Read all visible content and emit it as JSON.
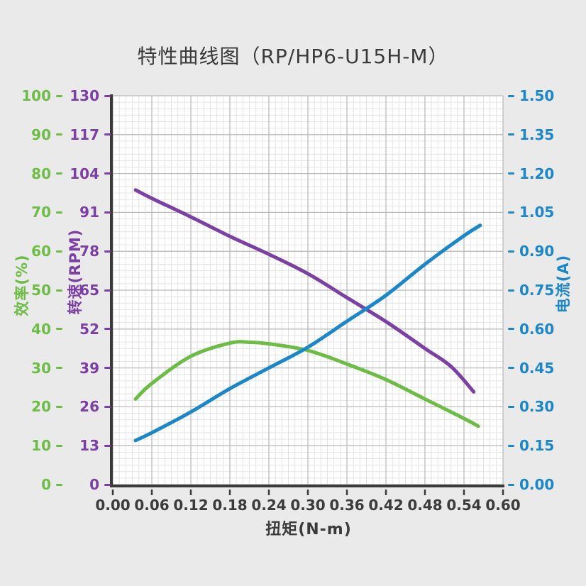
{
  "title": "特性曲线图（RP/HP6-U15H-M）",
  "colors": {
    "background": "#eaeaea",
    "plot_background": "#ffffff",
    "grid_major": "#bdbdbd",
    "grid_minor": "#e4e4e4",
    "spine": "#3a3a3a",
    "efficiency": "#6cbc45",
    "rpm": "#7c3fa4",
    "current": "#1b86c8",
    "text": "#3b3b3b"
  },
  "chart_data": {
    "type": "line",
    "title": "特性曲线图（RP/HP6-U15H-M）",
    "xlabel": "扭矩(N-m)",
    "x_range": [
      0,
      0.6
    ],
    "x_ticks": [
      "0.00",
      "0.06",
      "0.12",
      "0.18",
      "0.24",
      "0.30",
      "0.36",
      "0.42",
      "0.48",
      "0.54",
      "0.60"
    ],
    "grid": "major and minor, on",
    "legend": "none",
    "axes": [
      {
        "key": "efficiency",
        "label": "效率(%)",
        "side": "left-outer",
        "color": "#6cbc45",
        "range": [
          0,
          100
        ],
        "ticks": [
          "100",
          "90",
          "80",
          "70",
          "60",
          "50",
          "40",
          "30",
          "20",
          "10",
          "0"
        ]
      },
      {
        "key": "rpm",
        "label": "转速(RPM)",
        "side": "left-inner",
        "color": "#7c3fa4",
        "range": [
          0,
          130
        ],
        "ticks": [
          "130",
          "117",
          "104",
          "91",
          "78",
          "65",
          "52",
          "39",
          "26",
          "13",
          "0"
        ]
      },
      {
        "key": "current",
        "label": "电流(A)",
        "side": "right",
        "color": "#1b86c8",
        "range": [
          0,
          1.5
        ],
        "ticks": [
          "1.50",
          "1.35",
          "1.20",
          "1.05",
          "0.90",
          "0.75",
          "0.60",
          "0.45",
          "0.30",
          "0.15",
          "0.00"
        ]
      }
    ],
    "series": [
      {
        "name": "转速(RPM)",
        "axis": "rpm",
        "color": "#7c3fa4",
        "points": [
          [
            0.035,
            98.5
          ],
          [
            0.06,
            95.7
          ],
          [
            0.12,
            89.5
          ],
          [
            0.18,
            83
          ],
          [
            0.24,
            77
          ],
          [
            0.3,
            70.5
          ],
          [
            0.36,
            62.5
          ],
          [
            0.42,
            54.5
          ],
          [
            0.48,
            45.5
          ],
          [
            0.52,
            39.5
          ],
          [
            0.555,
            31
          ]
        ]
      },
      {
        "name": "效率(%)",
        "axis": "efficiency",
        "color": "#6cbc45",
        "points": [
          [
            0.035,
            22
          ],
          [
            0.06,
            26
          ],
          [
            0.12,
            33
          ],
          [
            0.18,
            36.4
          ],
          [
            0.21,
            36.6
          ],
          [
            0.24,
            36.2
          ],
          [
            0.3,
            34.5
          ],
          [
            0.36,
            31
          ],
          [
            0.42,
            27
          ],
          [
            0.48,
            22
          ],
          [
            0.54,
            17
          ],
          [
            0.562,
            15
          ]
        ]
      },
      {
        "name": "电流(A)",
        "axis": "current",
        "color": "#1b86c8",
        "points": [
          [
            0.035,
            0.17
          ],
          [
            0.06,
            0.2
          ],
          [
            0.12,
            0.28
          ],
          [
            0.18,
            0.37
          ],
          [
            0.24,
            0.45
          ],
          [
            0.3,
            0.53
          ],
          [
            0.36,
            0.63
          ],
          [
            0.42,
            0.73
          ],
          [
            0.48,
            0.85
          ],
          [
            0.54,
            0.96
          ],
          [
            0.565,
            1.0
          ]
        ]
      }
    ]
  }
}
